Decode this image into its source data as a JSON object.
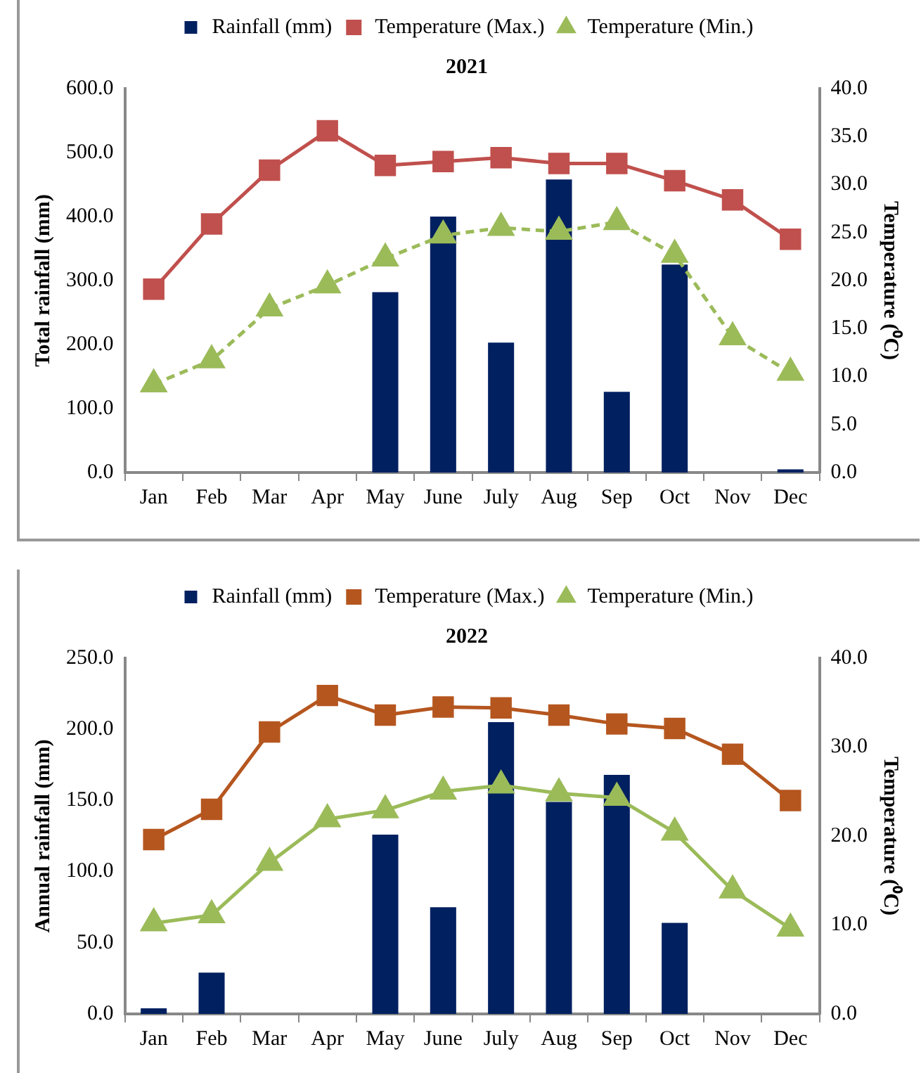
{
  "chart_data": [
    {
      "type": "bar",
      "title": "2021",
      "ylabel": "Total rainfall (mm)",
      "y2label": "Temperature (⁰C)",
      "categories": [
        "Jan",
        "Feb",
        "Mar",
        "Apr",
        "May",
        "June",
        "July",
        "Aug",
        "Sep",
        "Oct",
        "Nov",
        "Dec"
      ],
      "legend": "top",
      "grid": false,
      "ylim": [
        0,
        600
      ],
      "yticks": [
        {
          "value": 0,
          "label": "0.0"
        },
        {
          "value": 100,
          "label": "100.0"
        },
        {
          "value": 200,
          "label": "200.0"
        },
        {
          "value": 300,
          "label": "300.0"
        },
        {
          "value": 400,
          "label": "400.0"
        },
        {
          "value": 500,
          "label": "500.0"
        },
        {
          "value": 600,
          "label": "600.0"
        }
      ],
      "y2lim": [
        0,
        40
      ],
      "y2ticks": [
        {
          "value": 0,
          "label": "0.0"
        },
        {
          "value": 5,
          "label": "5.0"
        },
        {
          "value": 10,
          "label": "10.0"
        },
        {
          "value": 15,
          "label": "15.0"
        },
        {
          "value": 20,
          "label": "20.0"
        },
        {
          "value": 25,
          "label": "25.0"
        },
        {
          "value": 30,
          "label": "30.0"
        },
        {
          "value": 35,
          "label": "35.0"
        },
        {
          "value": 40,
          "label": "40.0"
        }
      ],
      "series": [
        {
          "name": "Rainfall (mm)",
          "color": "#002060",
          "values": [
            0,
            0,
            0,
            0,
            282,
            400,
            203,
            458,
            126,
            325,
            0,
            5
          ]
        },
        {
          "name": "Temperature (Max.)",
          "type": "line",
          "axis": "y2",
          "marker": "square",
          "color": "#c0504d",
          "values": [
            19.1,
            25.9,
            31.5,
            35.6,
            32.0,
            32.4,
            32.8,
            32.2,
            32.2,
            30.4,
            28.4,
            24.3
          ]
        },
        {
          "name": "Temperature (Min.)",
          "type": "line",
          "axis": "y2",
          "marker": "triangle",
          "line_style": "dashed",
          "color": "#9bbb59",
          "values": [
            9.2,
            11.7,
            17.1,
            19.5,
            22.3,
            24.7,
            25.5,
            25.1,
            26.1,
            22.7,
            14.1,
            10.4
          ]
        }
      ]
    },
    {
      "type": "bar",
      "title": "2022",
      "ylabel": "Annual rainfall (mm)",
      "y2label": "Temperature (⁰C)",
      "categories": [
        "Jan",
        "Feb",
        "Mar",
        "Apr",
        "May",
        "June",
        "July",
        "Aug",
        "Sep",
        "Oct",
        "Nov",
        "Dec"
      ],
      "legend": "top",
      "grid": false,
      "ylim": [
        0,
        250
      ],
      "yticks": [
        {
          "value": 0,
          "label": "0.0"
        },
        {
          "value": 50,
          "label": "50.0"
        },
        {
          "value": 100,
          "label": "100.0"
        },
        {
          "value": 150,
          "label": "150.0"
        },
        {
          "value": 200,
          "label": "200.0"
        },
        {
          "value": 250,
          "label": "250.0"
        }
      ],
      "y2lim": [
        0,
        40
      ],
      "y2ticks": [
        {
          "value": 0,
          "label": "0.0"
        },
        {
          "value": 10,
          "label": "10.0"
        },
        {
          "value": 20,
          "label": "20.0"
        },
        {
          "value": 30,
          "label": "30.0"
        },
        {
          "value": 40,
          "label": "40.0"
        }
      ],
      "series": [
        {
          "name": "Rainfall (mm)",
          "color": "#002060",
          "values": [
            4,
            29,
            0,
            0,
            126,
            75,
            205,
            149,
            168,
            64,
            0,
            0
          ]
        },
        {
          "name": "Temperature (Max.)",
          "type": "line",
          "axis": "y2",
          "marker": "square",
          "color": "#b5561f",
          "values": [
            19.6,
            23.0,
            31.7,
            35.8,
            33.6,
            34.5,
            34.4,
            33.6,
            32.6,
            32.1,
            29.2,
            24.0
          ]
        },
        {
          "name": "Temperature (Min.)",
          "type": "line",
          "axis": "y2",
          "marker": "triangle",
          "color": "#9bbb59",
          "values": [
            10.2,
            11.1,
            17.0,
            21.9,
            22.9,
            25.0,
            25.7,
            24.8,
            24.3,
            20.4,
            13.9,
            9.6
          ]
        }
      ]
    }
  ]
}
